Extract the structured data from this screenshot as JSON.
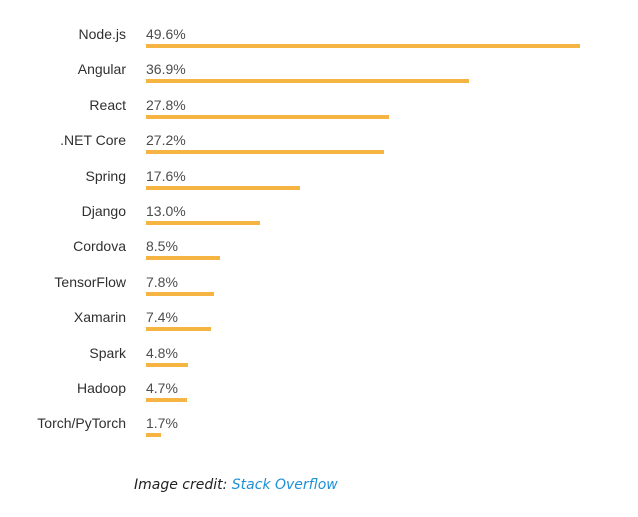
{
  "chart_data": {
    "type": "bar",
    "orientation": "horizontal",
    "title": "",
    "xlabel": "",
    "ylabel": "",
    "xlim": [
      0,
      49.6
    ],
    "categories": [
      "Node.js",
      "Angular",
      "React",
      ".NET Core",
      "Spring",
      "Django",
      "Cordova",
      "TensorFlow",
      "Xamarin",
      "Spark",
      "Hadoop",
      "Torch/PyTorch"
    ],
    "values": [
      49.6,
      36.9,
      27.8,
      27.2,
      17.6,
      13.0,
      8.5,
      7.8,
      7.4,
      4.8,
      4.7,
      1.7
    ],
    "value_labels": [
      "49.6%",
      "36.9%",
      "27.8%",
      "27.2%",
      "17.6%",
      "13.0%",
      "8.5%",
      "7.8%",
      "7.4%",
      "4.8%",
      "4.7%",
      "1.7%"
    ],
    "bar_color": "#f6b442"
  },
  "credit": {
    "prefix": "Image credit: ",
    "link_text": "Stack Overflow",
    "link_color": "#1e90d6"
  }
}
